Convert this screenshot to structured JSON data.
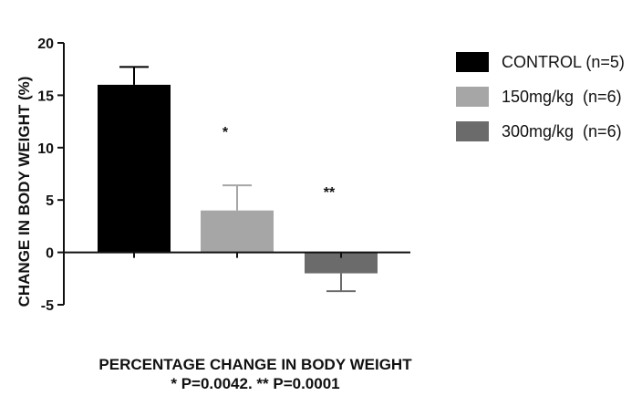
{
  "chart_data": {
    "type": "bar",
    "ylabel": "CHANGE IN BODY WEIGHT (%)",
    "ylim": [
      -5,
      20
    ],
    "yticks": [
      -5,
      0,
      5,
      10,
      15,
      20
    ],
    "series": [
      {
        "name": "CONTROL (n=5)",
        "value": 16.0,
        "error": 1.7,
        "color": "#000000",
        "annotation": ""
      },
      {
        "name": "150mg/kg  (n=6)",
        "value": 4.0,
        "error": 2.4,
        "color": "#a6a6a6",
        "annotation": "*"
      },
      {
        "name": "300mg/kg  (n=6)",
        "value": -2.0,
        "error": 1.7,
        "color": "#6b6b6b",
        "annotation": "**"
      }
    ],
    "legend_position": "right",
    "grid": false
  },
  "caption": {
    "line1": "PERCENTAGE CHANGE IN BODY WEIGHT",
    "line2": "*  P=0.0042.  **  P=0.0001"
  }
}
